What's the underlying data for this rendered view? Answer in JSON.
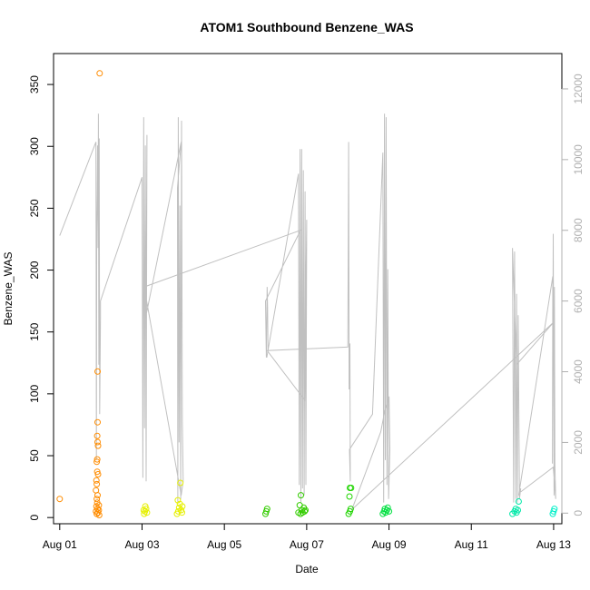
{
  "chart_data": {
    "type": "scatter",
    "title": "ATOM1 Southbound Benzene_WAS",
    "xlabel": "Date",
    "ylabel": "Benzene_WAS",
    "x_ticks": [
      "Aug 01",
      "Aug 03",
      "Aug 05",
      "Aug 07",
      "Aug 09",
      "Aug 11",
      "Aug 13"
    ],
    "x_tick_days": [
      1,
      3,
      5,
      7,
      9,
      11,
      13
    ],
    "xlim": [
      0.85,
      13.2
    ],
    "ylim": [
      -5,
      375
    ],
    "y_ticks": [
      0,
      50,
      100,
      150,
      200,
      250,
      300,
      350
    ],
    "secondary_axis": {
      "ylim": [
        -300,
        13000
      ],
      "ticks": [
        0,
        2000,
        4000,
        6000,
        8000,
        10000,
        12000
      ],
      "color": "#b0b0b0"
    },
    "grid": false,
    "points": [
      {
        "x": 1.0,
        "y": 15,
        "color": "#ff8c00"
      },
      {
        "x": 1.88,
        "y": 5,
        "color": "#ff8c00"
      },
      {
        "x": 1.9,
        "y": 3,
        "color": "#ff8c00"
      },
      {
        "x": 1.92,
        "y": 7,
        "color": "#ff8c00"
      },
      {
        "x": 1.93,
        "y": 4,
        "color": "#ff8c00"
      },
      {
        "x": 1.95,
        "y": 6,
        "color": "#ff8c00"
      },
      {
        "x": 1.89,
        "y": 9,
        "color": "#ff8c00"
      },
      {
        "x": 1.91,
        "y": 12,
        "color": "#ff8c00"
      },
      {
        "x": 1.9,
        "y": 15,
        "color": "#ff8c00"
      },
      {
        "x": 1.92,
        "y": 18,
        "color": "#ff8c00"
      },
      {
        "x": 1.88,
        "y": 22,
        "color": "#ff8c00"
      },
      {
        "x": 1.9,
        "y": 27,
        "color": "#ff8c00"
      },
      {
        "x": 1.89,
        "y": 30,
        "color": "#ff8c00"
      },
      {
        "x": 1.93,
        "y": 35,
        "color": "#ff8c00"
      },
      {
        "x": 1.91,
        "y": 37,
        "color": "#ff8c00"
      },
      {
        "x": 1.9,
        "y": 45,
        "color": "#ff8c00"
      },
      {
        "x": 1.91,
        "y": 47,
        "color": "#ff8c00"
      },
      {
        "x": 1.93,
        "y": 58,
        "color": "#ff8c00"
      },
      {
        "x": 1.92,
        "y": 61,
        "color": "#ff8c00"
      },
      {
        "x": 1.91,
        "y": 66,
        "color": "#ff8c00"
      },
      {
        "x": 1.92,
        "y": 77,
        "color": "#ff8c00"
      },
      {
        "x": 1.92,
        "y": 118,
        "color": "#ff8c00"
      },
      {
        "x": 1.97,
        "y": 359,
        "color": "#ff8c00"
      },
      {
        "x": 1.95,
        "y": 10,
        "color": "#ff8c00"
      },
      {
        "x": 1.96,
        "y": 2,
        "color": "#ff8c00"
      },
      {
        "x": 3.05,
        "y": 3,
        "color": "#e6f000"
      },
      {
        "x": 3.07,
        "y": 5,
        "color": "#e6f000"
      },
      {
        "x": 3.1,
        "y": 7,
        "color": "#e6f000"
      },
      {
        "x": 3.08,
        "y": 9,
        "color": "#e6f000"
      },
      {
        "x": 3.12,
        "y": 4,
        "color": "#e6f000"
      },
      {
        "x": 3.04,
        "y": 6,
        "color": "#e6f000"
      },
      {
        "x": 3.85,
        "y": 3,
        "color": "#e6f000"
      },
      {
        "x": 3.88,
        "y": 5,
        "color": "#e6f000"
      },
      {
        "x": 3.9,
        "y": 8,
        "color": "#e6f000"
      },
      {
        "x": 3.92,
        "y": 11,
        "color": "#e6f000"
      },
      {
        "x": 3.87,
        "y": 14,
        "color": "#e6f000"
      },
      {
        "x": 3.95,
        "y": 6,
        "color": "#e6f000"
      },
      {
        "x": 3.97,
        "y": 4,
        "color": "#e6f000"
      },
      {
        "x": 3.93,
        "y": 28,
        "color": "#e6f000"
      },
      {
        "x": 3.98,
        "y": 9,
        "color": "#e6f000"
      },
      {
        "x": 6.0,
        "y": 3,
        "color": "#33cc00"
      },
      {
        "x": 6.02,
        "y": 5,
        "color": "#33cc00"
      },
      {
        "x": 6.04,
        "y": 7,
        "color": "#33cc00"
      },
      {
        "x": 6.85,
        "y": 3,
        "color": "#33cc00"
      },
      {
        "x": 6.88,
        "y": 6,
        "color": "#33cc00"
      },
      {
        "x": 6.9,
        "y": 4,
        "color": "#33cc00"
      },
      {
        "x": 6.93,
        "y": 8,
        "color": "#33cc00"
      },
      {
        "x": 6.95,
        "y": 5,
        "color": "#33cc00"
      },
      {
        "x": 6.8,
        "y": 4,
        "color": "#33cc00"
      },
      {
        "x": 6.97,
        "y": 6,
        "color": "#33cc00"
      },
      {
        "x": 6.83,
        "y": 10,
        "color": "#33cc00"
      },
      {
        "x": 6.86,
        "y": 18,
        "color": "#33cc00"
      },
      {
        "x": 8.02,
        "y": 3,
        "color": "#1fd400"
      },
      {
        "x": 8.05,
        "y": 5,
        "color": "#1fd400"
      },
      {
        "x": 8.07,
        "y": 7,
        "color": "#1fd400"
      },
      {
        "x": 8.04,
        "y": 17,
        "color": "#1fd400"
      },
      {
        "x": 8.05,
        "y": 24,
        "color": "#1fd400"
      },
      {
        "x": 8.08,
        "y": 24,
        "color": "#1fd400"
      },
      {
        "x": 8.85,
        "y": 3,
        "color": "#00e040"
      },
      {
        "x": 8.88,
        "y": 5,
        "color": "#00e040"
      },
      {
        "x": 8.9,
        "y": 7,
        "color": "#00e040"
      },
      {
        "x": 8.92,
        "y": 4,
        "color": "#00e040"
      },
      {
        "x": 8.95,
        "y": 6,
        "color": "#00e040"
      },
      {
        "x": 8.97,
        "y": 8,
        "color": "#00e040"
      },
      {
        "x": 9.0,
        "y": 5,
        "color": "#00e040"
      },
      {
        "x": 12.0,
        "y": 3,
        "color": "#00e8a8"
      },
      {
        "x": 12.05,
        "y": 5,
        "color": "#00e8a8"
      },
      {
        "x": 12.08,
        "y": 7,
        "color": "#00e8a8"
      },
      {
        "x": 12.1,
        "y": 4,
        "color": "#00e8a8"
      },
      {
        "x": 12.13,
        "y": 6,
        "color": "#00e8a8"
      },
      {
        "x": 12.15,
        "y": 13,
        "color": "#00e8a8"
      },
      {
        "x": 12.98,
        "y": 3,
        "color": "#00f0c8"
      },
      {
        "x": 13.0,
        "y": 5,
        "color": "#00f0c8"
      },
      {
        "x": 13.02,
        "y": 7,
        "color": "#00f0c8"
      }
    ],
    "secondary_line": {
      "name": "",
      "color": "#c0c0c0",
      "x": [
        1.0,
        1.88,
        1.89,
        1.9,
        1.91,
        1.92,
        1.93,
        1.94,
        1.95,
        1.96,
        1.97,
        1.99,
        1.99,
        3.0,
        3.02,
        3.04,
        3.06,
        3.08,
        3.1,
        3.12,
        3.1,
        3.95,
        3.86,
        3.87,
        3.88,
        3.9,
        3.92,
        3.94,
        3.96,
        3.98,
        4.0,
        3.95,
        3.05,
        6.85,
        6.0,
        6.02,
        6.04,
        6.05,
        6.06,
        6.03,
        6.8,
        6.82,
        6.84,
        6.86,
        6.88,
        6.9,
        6.92,
        6.94,
        6.96,
        6.98,
        7.0,
        6.95,
        6.04,
        8.0,
        8.02,
        8.03,
        8.05,
        8.06,
        8.04,
        8.6,
        8.85,
        8.87,
        8.89,
        8.91,
        8.93,
        8.95,
        8.97,
        8.99,
        9.02,
        9.0,
        8.9,
        8.8,
        8.1,
        13.0,
        12.1,
        12.0,
        12.03,
        12.05,
        12.08,
        12.1,
        12.12,
        12.14,
        12.17,
        12.2,
        12.15,
        12.98,
        12.97,
        12.99,
        13.01,
        13.02,
        13.03,
        13.05,
        12.99,
        12.2
      ],
      "y": [
        7850,
        10500,
        1500,
        8000,
        9000,
        10400,
        7500,
        11300,
        4200,
        10600,
        2800,
        5500,
        6000,
        9500,
        1000,
        11200,
        2400,
        10400,
        900,
        10700,
        5600,
        10500,
        9200,
        300,
        11200,
        2000,
        8700,
        400,
        11100,
        2600,
        900,
        500,
        6400,
        8000,
        6000,
        4400,
        6400,
        5800,
        4600,
        4400,
        9600,
        800,
        10300,
        300,
        10300,
        700,
        9700,
        500,
        9100,
        800,
        8300,
        3200,
        4600,
        4700,
        10500,
        3500,
        4800,
        900,
        1800,
        2800,
        10200,
        300,
        11300,
        1500,
        11200,
        800,
        6900,
        400,
        1800,
        3300,
        2900,
        2300,
        100,
        5400,
        4200,
        7500,
        300,
        7400,
        400,
        6200,
        300,
        5600,
        400,
        700,
        500,
        6700,
        1400,
        7900,
        500,
        6400,
        1400,
        400,
        1300,
        600
      ]
    }
  }
}
